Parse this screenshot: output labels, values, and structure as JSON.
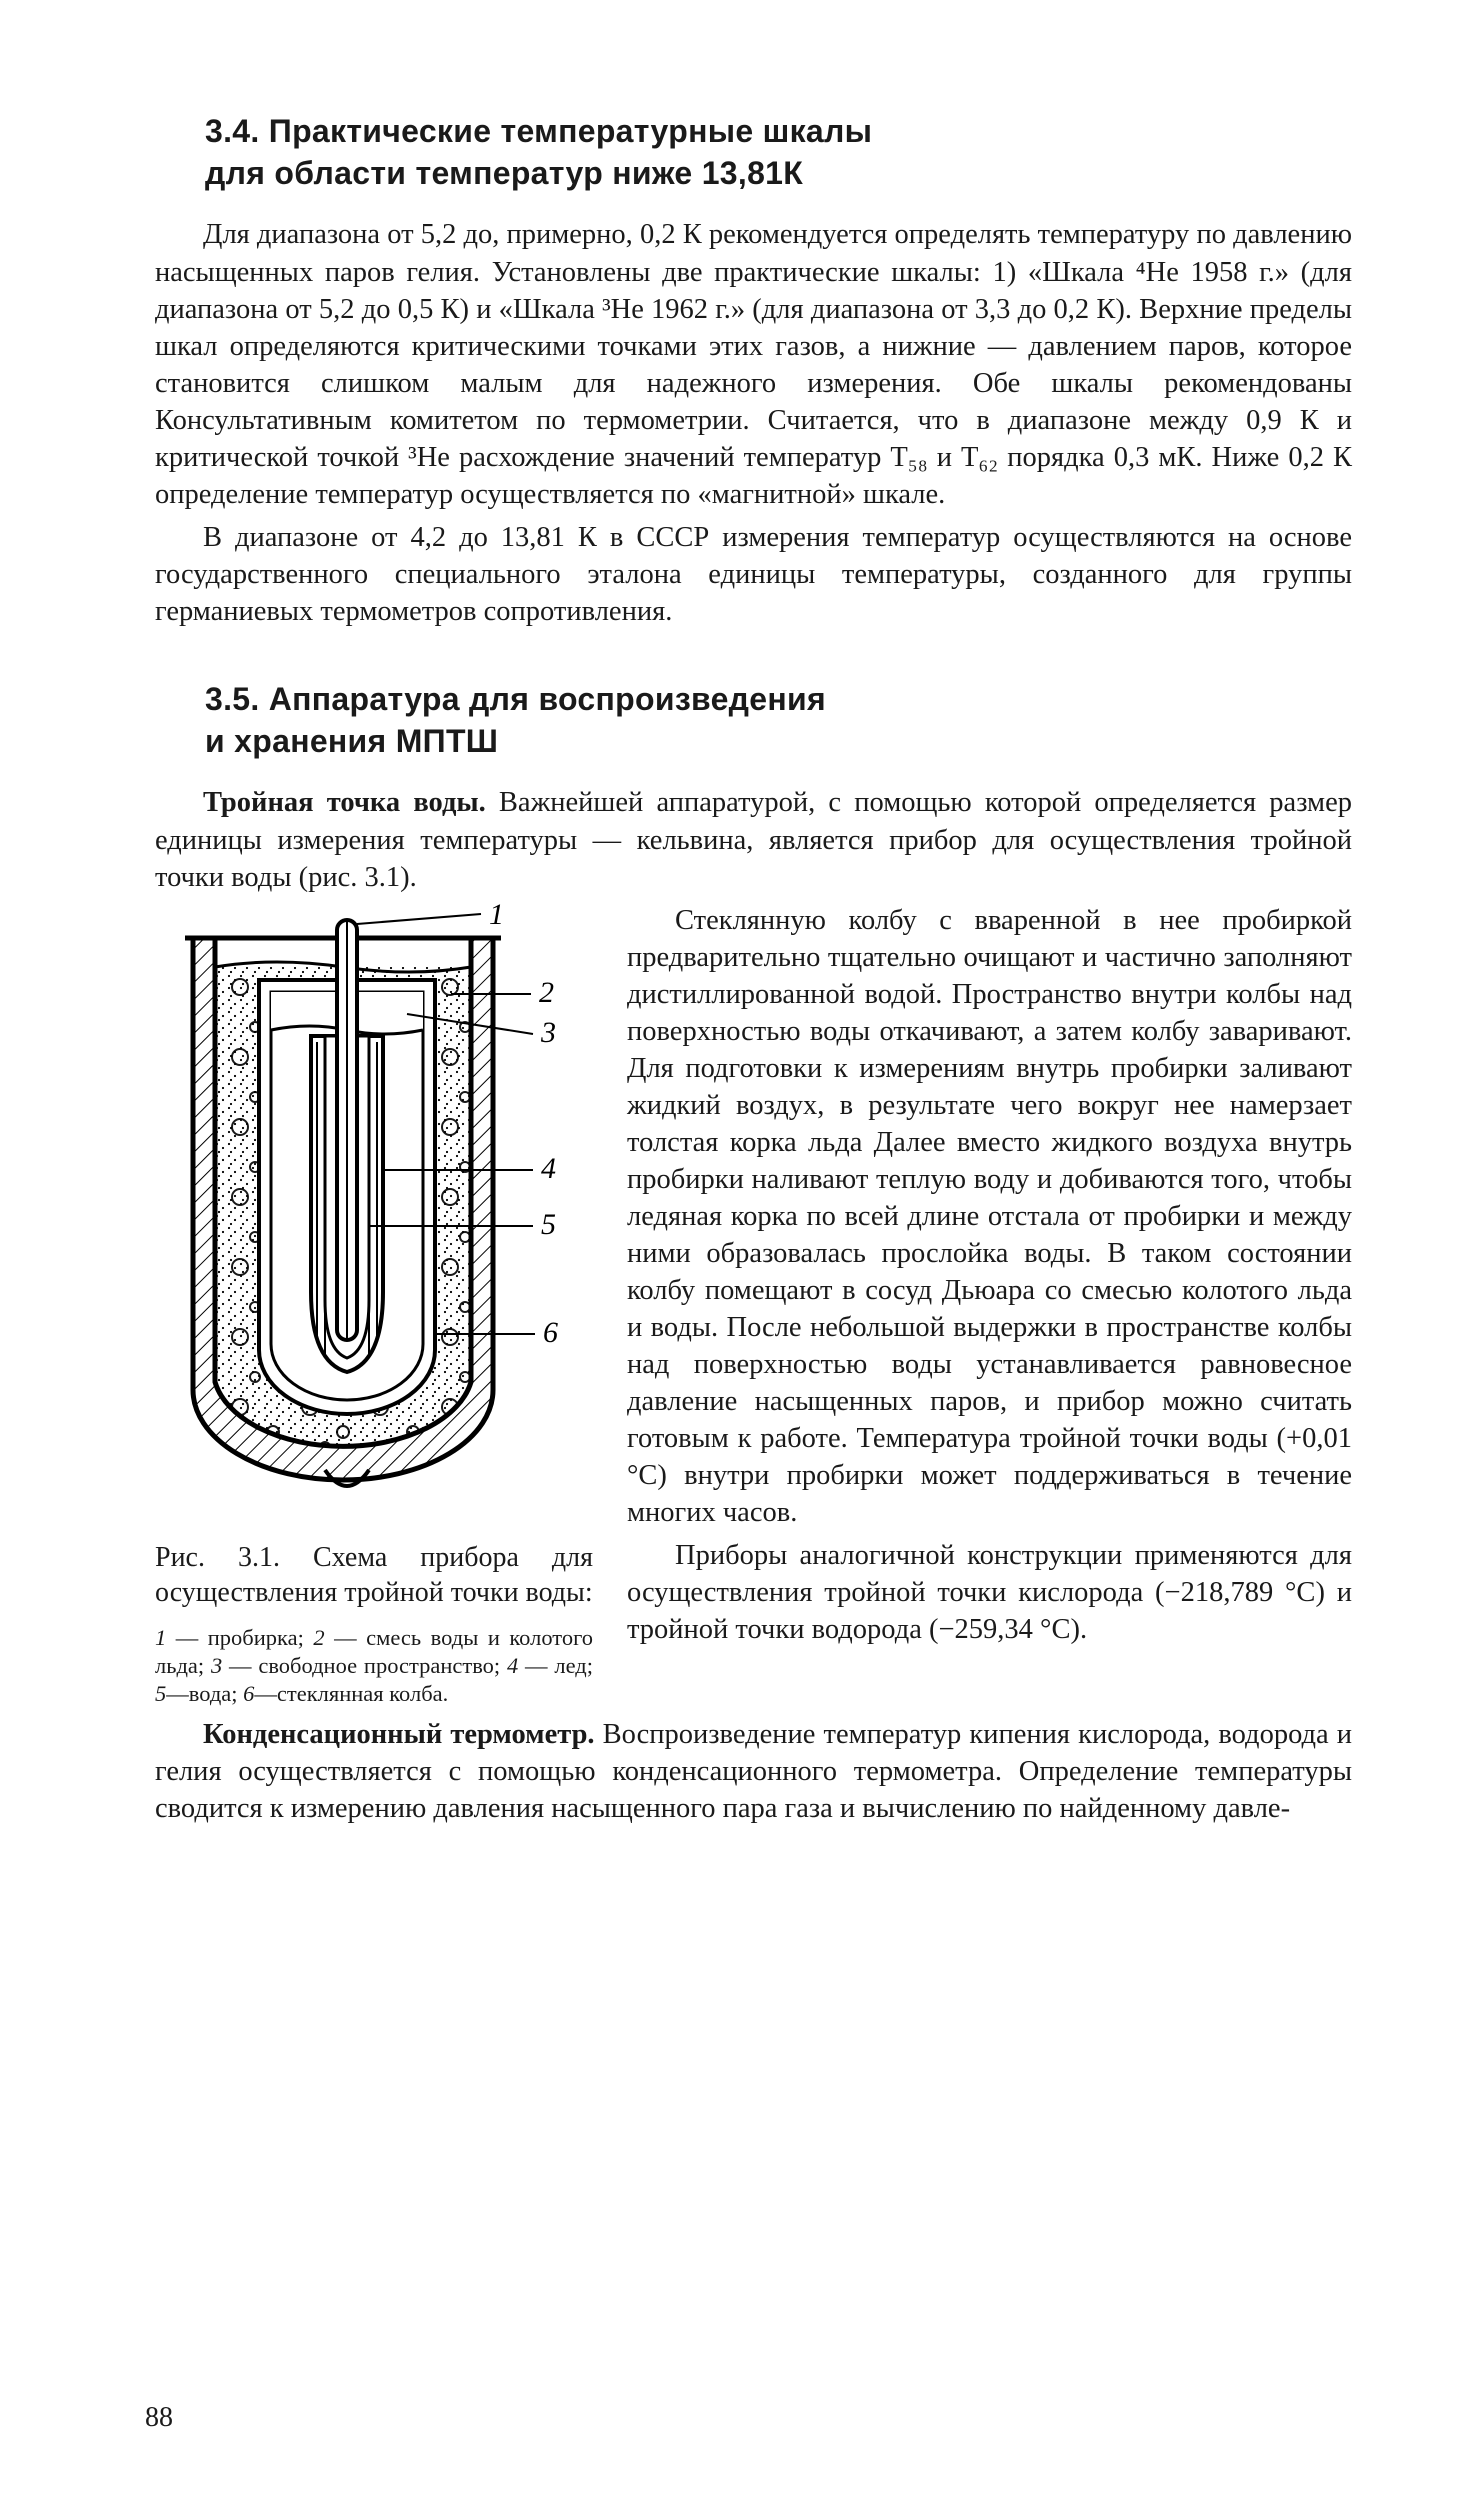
{
  "section34": {
    "heading_l1": "3.4. Практические температурные шкалы",
    "heading_l2": "для области температур ниже 13,81К",
    "p1": "Для диапазона от 5,2 до, примерно, 0,2 К рекомендуется определять температуру по давлению насыщенных паров гелия. Установлены две практические шкалы: 1) «Шкала ⁴He 1958 г.» (для диапазона от 5,2 до 0,5 К) и «Шкала ³He 1962 г.» (для диапазона от 3,3 до 0,2 К). Верхние пределы шкал определяются критическими точками этих газов, а нижние — давлением паров, которое становится слишком малым для надежного измерения. Обе шкалы рекомендованы Консультативным комитетом по термометрии. Считается, что в диапазоне между 0,9 К и критической точкой ³He расхождение значений температур T₅₈ и T₆₂ порядка 0,3 мК. Ниже 0,2 К определение температур осуществляется по «магнитной» шкале.",
    "p2": "В диапазоне от 4,2 до 13,81 К в СССР измерения температур осуществляются на основе государственного специального эталона единицы температуры, созданного для группы германиевых термометров сопротивления."
  },
  "section35": {
    "heading_l1": "3.5. Аппаратура для воспроизведения",
    "heading_l2": "и хранения МПТШ",
    "p1_lead": "Тройная точка воды.",
    "p1": " Важнейшей аппаратурой, с помощью которой определяется размер единицы измерения температуры — кельвина, является прибор для осуществления тройной точки воды (рис. 3.1).",
    "p2": "Стеклянную колбу с вваренной в нее пробиркой предварительно тщательно очищают и частично заполняют дистиллированной водой. Пространство внутри колбы над поверхностью воды откачивают, а затем колбу заваривают. Для подготовки к измерениям внутрь пробирки заливают жидкий воздух, в результате чего вокруг нее намерзает толстая корка льда Далее вместо жидкого воздуха внутрь пробирки наливают теплую воду и добиваются того, чтобы ледяная корка по всей длине отстала от пробирки и между ними образовалась прослойка воды. В таком состоянии колбу помещают в сосуд Дьюара со смесью колотого льда и воды. После небольшой выдержки в пространстве колбы над поверхностью воды устанавливается равновесное давление насыщенных паров, и прибор можно считать готовым к работе. Температура тройной точки воды (+0,01 °C) внутри пробирки может поддерживаться в течение многих часов.",
    "p3": "Приборы аналогичной конструкции применяются для осуществления тройной точки кислорода (−218,789 °C) и тройной точки водорода (−259,34 °C).",
    "p4_lead": "Конденсационный термометр.",
    "p4": " Воспроизведение температур кипения кислорода, водорода и гелия осуществляется с помощью конденсационного термометра. Определение температуры сводится к измерению давления насыщенного пара газа и вычислению по найденному давле-"
  },
  "figure": {
    "caption": "Рис. 3.1. Схема прибора для осуществления тройной точки воды:",
    "legend_html": "<i>1</i> — пробирка; <i>2</i> — смесь воды и колотого льда; <i>3</i> — свободное пространство; <i>4</i> — лед; <i>5</i>—вода; <i>6</i>—стеклянная колба.",
    "labels": {
      "l1": "1",
      "l2": "2",
      "l3": "3",
      "l4": "4",
      "l5": "5",
      "l6": "6"
    },
    "colors": {
      "stroke": "#000000",
      "hatch": "#000000",
      "bg": "#ffffff"
    }
  },
  "page_number": "88"
}
